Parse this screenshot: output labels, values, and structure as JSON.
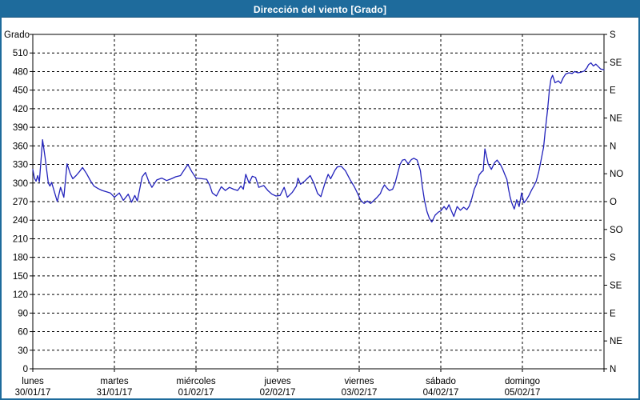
{
  "title": "Dirección del viento [Grado]",
  "colors": {
    "titlebar": "#1e6b9c",
    "frame_border": "#1e6b9c",
    "plot_frame": "#000000",
    "grid": "#000000",
    "line": "#2222bb",
    "background": "#ffffff",
    "text": "#000000"
  },
  "chart_data": {
    "type": "line",
    "title": "Dirección del viento [Grado]",
    "ylabel": "Grado",
    "ylim": [
      0,
      540
    ],
    "ytick_step": 30,
    "right_axis_step": 45,
    "grid": true,
    "legend_position": "none",
    "right_axis_labels": [
      "N",
      "NE",
      "E",
      "SE",
      "S",
      "SO",
      "O",
      "NO",
      "N",
      "NE",
      "E",
      "SE",
      "S"
    ],
    "x_days": [
      {
        "name": "lunes",
        "date": "30/01/17"
      },
      {
        "name": "martes",
        "date": "31/01/17"
      },
      {
        "name": "miércoles",
        "date": "01/02/17"
      },
      {
        "name": "jueves",
        "date": "02/02/17"
      },
      {
        "name": "viernes",
        "date": "03/02/17"
      },
      {
        "name": "sábado",
        "date": "04/02/17"
      },
      {
        "name": "domingo",
        "date": "05/02/17"
      }
    ],
    "series": [
      {
        "name": "Dirección del viento",
        "points": [
          [
            0.0,
            322
          ],
          [
            0.02,
            308
          ],
          [
            0.04,
            303
          ],
          [
            0.06,
            312
          ],
          [
            0.08,
            302
          ],
          [
            0.12,
            370
          ],
          [
            0.15,
            342
          ],
          [
            0.19,
            300
          ],
          [
            0.21,
            295
          ],
          [
            0.23,
            301
          ],
          [
            0.26,
            288
          ],
          [
            0.3,
            270
          ],
          [
            0.34,
            293
          ],
          [
            0.38,
            277
          ],
          [
            0.42,
            331
          ],
          [
            0.46,
            315
          ],
          [
            0.49,
            307
          ],
          [
            0.53,
            312
          ],
          [
            0.57,
            318
          ],
          [
            0.61,
            325
          ],
          [
            0.66,
            315
          ],
          [
            0.71,
            303
          ],
          [
            0.75,
            295
          ],
          [
            0.8,
            291
          ],
          [
            0.85,
            288
          ],
          [
            0.9,
            286
          ],
          [
            0.95,
            284
          ],
          [
            1.0,
            277
          ],
          [
            1.06,
            284
          ],
          [
            1.11,
            272
          ],
          [
            1.17,
            282
          ],
          [
            1.21,
            269
          ],
          [
            1.25,
            280
          ],
          [
            1.28,
            271
          ],
          [
            1.31,
            290
          ],
          [
            1.34,
            310
          ],
          [
            1.38,
            317
          ],
          [
            1.42,
            303
          ],
          [
            1.46,
            293
          ],
          [
            1.52,
            305
          ],
          [
            1.58,
            308
          ],
          [
            1.64,
            304
          ],
          [
            1.7,
            307
          ],
          [
            1.75,
            310
          ],
          [
            1.81,
            312
          ],
          [
            1.86,
            322
          ],
          [
            1.9,
            330
          ],
          [
            1.95,
            318
          ],
          [
            2.0,
            308
          ],
          [
            2.07,
            307
          ],
          [
            2.13,
            306
          ],
          [
            2.17,
            296
          ],
          [
            2.2,
            284
          ],
          [
            2.25,
            279
          ],
          [
            2.31,
            294
          ],
          [
            2.36,
            288
          ],
          [
            2.41,
            293
          ],
          [
            2.46,
            290
          ],
          [
            2.51,
            288
          ],
          [
            2.55,
            295
          ],
          [
            2.58,
            290
          ],
          [
            2.61,
            314
          ],
          [
            2.65,
            300
          ],
          [
            2.69,
            311
          ],
          [
            2.73,
            309
          ],
          [
            2.77,
            293
          ],
          [
            2.83,
            296
          ],
          [
            2.88,
            288
          ],
          [
            2.93,
            282
          ],
          [
            2.98,
            279
          ],
          [
            3.03,
            280
          ],
          [
            3.08,
            293
          ],
          [
            3.12,
            277
          ],
          [
            3.18,
            285
          ],
          [
            3.23,
            295
          ],
          [
            3.25,
            308
          ],
          [
            3.28,
            298
          ],
          [
            3.33,
            303
          ],
          [
            3.4,
            312
          ],
          [
            3.45,
            298
          ],
          [
            3.49,
            283
          ],
          [
            3.53,
            278
          ],
          [
            3.58,
            300
          ],
          [
            3.62,
            314
          ],
          [
            3.65,
            307
          ],
          [
            3.7,
            320
          ],
          [
            3.73,
            326
          ],
          [
            3.78,
            327
          ],
          [
            3.83,
            320
          ],
          [
            3.89,
            305
          ],
          [
            3.94,
            294
          ],
          [
            3.98,
            283
          ],
          [
            4.02,
            272
          ],
          [
            4.06,
            267
          ],
          [
            4.1,
            271
          ],
          [
            4.14,
            267
          ],
          [
            4.18,
            272
          ],
          [
            4.22,
            277
          ],
          [
            4.26,
            283
          ],
          [
            4.28,
            290
          ],
          [
            4.31,
            297
          ],
          [
            4.34,
            292
          ],
          [
            4.37,
            288
          ],
          [
            4.41,
            290
          ],
          [
            4.44,
            300
          ],
          [
            4.47,
            315
          ],
          [
            4.5,
            330
          ],
          [
            4.53,
            337
          ],
          [
            4.56,
            338
          ],
          [
            4.6,
            331
          ],
          [
            4.64,
            338
          ],
          [
            4.67,
            340
          ],
          [
            4.71,
            337
          ],
          [
            4.75,
            320
          ],
          [
            4.77,
            298
          ],
          [
            4.8,
            272
          ],
          [
            4.83,
            254
          ],
          [
            4.86,
            243
          ],
          [
            4.89,
            237
          ],
          [
            4.93,
            248
          ],
          [
            4.97,
            253
          ],
          [
            5.0,
            255
          ],
          [
            5.04,
            262
          ],
          [
            5.07,
            257
          ],
          [
            5.1,
            265
          ],
          [
            5.13,
            255
          ],
          [
            5.16,
            246
          ],
          [
            5.2,
            262
          ],
          [
            5.24,
            256
          ],
          [
            5.28,
            261
          ],
          [
            5.32,
            257
          ],
          [
            5.35,
            263
          ],
          [
            5.38,
            275
          ],
          [
            5.41,
            290
          ],
          [
            5.44,
            299
          ],
          [
            5.47,
            313
          ],
          [
            5.5,
            318
          ],
          [
            5.52,
            320
          ],
          [
            5.54,
            355
          ],
          [
            5.56,
            344
          ],
          [
            5.58,
            331
          ],
          [
            5.62,
            322
          ],
          [
            5.66,
            333
          ],
          [
            5.69,
            337
          ],
          [
            5.73,
            330
          ],
          [
            5.76,
            322
          ],
          [
            5.79,
            312
          ],
          [
            5.81,
            306
          ],
          [
            5.83,
            290
          ],
          [
            5.85,
            277
          ],
          [
            5.87,
            268
          ],
          [
            5.9,
            258
          ],
          [
            5.93,
            273
          ],
          [
            5.96,
            262
          ],
          [
            5.99,
            284
          ],
          [
            6.02,
            268
          ],
          [
            6.05,
            273
          ],
          [
            6.08,
            280
          ],
          [
            6.11,
            288
          ],
          [
            6.14,
            295
          ],
          [
            6.17,
            303
          ],
          [
            6.2,
            318
          ],
          [
            6.23,
            338
          ],
          [
            6.26,
            358
          ],
          [
            6.28,
            385
          ],
          [
            6.31,
            420
          ],
          [
            6.33,
            450
          ],
          [
            6.35,
            468
          ],
          [
            6.37,
            474
          ],
          [
            6.4,
            462
          ],
          [
            6.44,
            465
          ],
          [
            6.47,
            461
          ],
          [
            6.5,
            470
          ],
          [
            6.53,
            476
          ],
          [
            6.57,
            478
          ],
          [
            6.61,
            477
          ],
          [
            6.64,
            480
          ],
          [
            6.68,
            478
          ],
          [
            6.72,
            479
          ],
          [
            6.76,
            481
          ],
          [
            6.79,
            486
          ],
          [
            6.81,
            491
          ],
          [
            6.84,
            494
          ],
          [
            6.87,
            489
          ],
          [
            6.9,
            492
          ],
          [
            6.93,
            488
          ],
          [
            6.96,
            484
          ],
          [
            7.0,
            483
          ]
        ]
      }
    ]
  }
}
